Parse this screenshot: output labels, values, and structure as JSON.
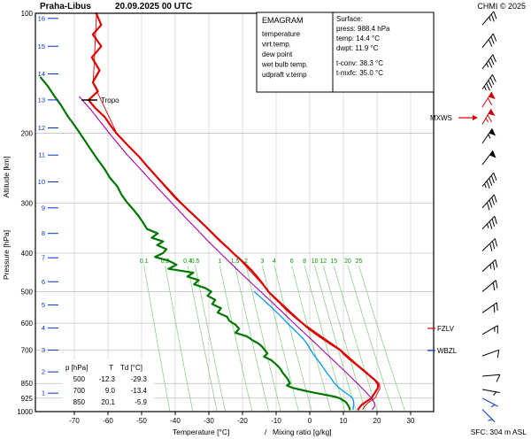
{
  "header": {
    "title": "Praha-Libus",
    "datetime": "20.09.2025 00 UTC",
    "copyright": "CHMI © 2025"
  },
  "legend": {
    "title": "EMAGRAM",
    "items": [
      {
        "label": "temperature",
        "color": "#dd0000"
      },
      {
        "label": "virt.temp.",
        "color": "#dd0000"
      },
      {
        "label": "dew point",
        "color": "#008000"
      },
      {
        "label": "wet bulb temp.",
        "color": "#0099ee"
      },
      {
        "label": "udpraft v.temp",
        "color": "#bb00bb"
      }
    ]
  },
  "surface": {
    "title": "Surface:",
    "lines": [
      {
        "label": "press: 988.4 hPa",
        "color": "#000000"
      },
      {
        "label": "temp: 14.4 °C",
        "color": "#dd0000"
      },
      {
        "label": "dwpt: 11.9 °C",
        "color": "#008000"
      },
      {
        "label": "t-conv: 38.3 °C",
        "color": "#000000"
      },
      {
        "label": "t-mxfc: 35.0 °C",
        "color": "#000000"
      }
    ]
  },
  "axes": {
    "pressure_label": "Pressure [hPa]",
    "altitude_label": "Altitude [km]",
    "temp_label": "Temperature [°C]",
    "separator": "/",
    "mixing_label": "Mixing ratio [g/kg]",
    "sfc_label": "SFC: 304 m ASL"
  },
  "table": {
    "headers": [
      "p [hPa]",
      "T",
      "Td [°C]"
    ],
    "rows": [
      [
        "500",
        "-12.3",
        "-29.3"
      ],
      [
        "700",
        "9.0",
        "-13.4"
      ],
      [
        "850",
        "20.1",
        "-5.9"
      ]
    ]
  },
  "annotations": {
    "tropo": "Tropo",
    "mxws": "MXWS",
    "fzlv": "FZLV",
    "wbzl": "WBZL"
  },
  "chart_data": {
    "type": "line",
    "title": "Praha-Libus emagram sounding 20.09.2025 00 UTC",
    "x_axis": {
      "label": "Temperature [°C]",
      "ticks": [
        -70,
        -60,
        -50,
        -40,
        -30,
        -20,
        -10,
        0,
        10,
        20,
        30
      ],
      "range": [
        -81.6,
        36.8
      ]
    },
    "y_axis": {
      "label": "Pressure [hPa]",
      "scale": "log",
      "ticks": [
        100,
        200,
        300,
        400,
        500,
        600,
        700,
        850,
        925,
        1000
      ],
      "range": [
        100,
        1000
      ]
    },
    "altitude_ticks_km": [
      [
        16,
        103
      ],
      [
        15,
        121
      ],
      [
        14,
        142
      ],
      [
        13,
        165
      ],
      [
        12,
        194
      ],
      [
        11,
        227
      ],
      [
        10,
        265
      ],
      [
        9,
        308
      ],
      [
        8,
        357
      ],
      [
        7,
        411
      ],
      [
        6,
        472
      ],
      [
        5,
        540
      ],
      [
        4,
        617
      ],
      [
        3,
        701
      ],
      [
        2,
        795
      ],
      [
        1,
        899
      ]
    ],
    "mixing_ratio_lines": [
      0.1,
      0.2,
      0.4,
      0.5,
      1,
      1.5,
      2,
      3,
      4,
      6,
      8,
      10,
      12,
      15,
      20,
      25
    ],
    "tropopause_hpa": 165,
    "surface_values": {
      "press_hpa": 988.4,
      "temp_c": 14.4,
      "dwpt_c": 11.9,
      "t_conv_c": 38.3,
      "t_mxfc_c": 35.0,
      "station_elev_m": 304
    },
    "series": [
      {
        "name": "temperature",
        "color": "#dd0000",
        "width": 2.2,
        "points": [
          [
            100,
            -63.5
          ],
          [
            107,
            -62
          ],
          [
            113,
            -64.5
          ],
          [
            121,
            -62
          ],
          [
            129,
            -64.8
          ],
          [
            139,
            -62.5
          ],
          [
            149,
            -64.5
          ],
          [
            157,
            -63
          ],
          [
            165,
            -65.8
          ],
          [
            173,
            -63.8
          ],
          [
            182,
            -61
          ],
          [
            191,
            -59.3
          ],
          [
            200,
            -57.5
          ],
          [
            214,
            -54.2
          ],
          [
            229,
            -50.8
          ],
          [
            244,
            -48
          ],
          [
            259,
            -45.2
          ],
          [
            274,
            -42.6
          ],
          [
            289,
            -40.2
          ],
          [
            300,
            -38.2
          ],
          [
            314,
            -35.8
          ],
          [
            329,
            -33.2
          ],
          [
            344,
            -30.8
          ],
          [
            359,
            -28.6
          ],
          [
            374,
            -26.5
          ],
          [
            389,
            -24.2
          ],
          [
            400,
            -22.8
          ],
          [
            414,
            -20.8
          ],
          [
            429,
            -18.8
          ],
          [
            444,
            -17.1
          ],
          [
            459,
            -15.6
          ],
          [
            479,
            -13.9
          ],
          [
            500,
            -12.3
          ],
          [
            514,
            -10.9
          ],
          [
            529,
            -9.3
          ],
          [
            544,
            -7.9
          ],
          [
            559,
            -6.5
          ],
          [
            579,
            -4.4
          ],
          [
            599,
            -2.3
          ],
          [
            619,
            -0.3
          ],
          [
            639,
            1.9
          ],
          [
            659,
            4.2
          ],
          [
            679,
            6.5
          ],
          [
            700,
            9.0
          ],
          [
            719,
            10.3
          ],
          [
            739,
            11.9
          ],
          [
            759,
            13.6
          ],
          [
            779,
            15.2
          ],
          [
            799,
            16.8
          ],
          [
            819,
            18.3
          ],
          [
            834,
            19.4
          ],
          [
            850,
            20.1
          ],
          [
            861,
            20.4
          ],
          [
            874,
            20.2
          ],
          [
            887,
            19.7
          ],
          [
            899,
            19.3
          ],
          [
            912,
            18.8
          ],
          [
            925,
            18.4
          ],
          [
            937,
            17.4
          ],
          [
            949,
            16.4
          ],
          [
            961,
            15.5
          ],
          [
            974,
            14.9
          ],
          [
            988,
            14.4
          ]
        ]
      },
      {
        "name": "virt_temp",
        "color": "#dd0000",
        "width": 0.9,
        "points": [
          [
            100,
            -63.4
          ],
          [
            150,
            -64.4
          ],
          [
            200,
            -57.4
          ],
          [
            300,
            -38
          ],
          [
            400,
            -22.6
          ],
          [
            500,
            -12.1
          ],
          [
            600,
            -2
          ],
          [
            700,
            9.3
          ],
          [
            750,
            13.3
          ],
          [
            800,
            17.2
          ],
          [
            850,
            20.7
          ],
          [
            875,
            20.9
          ],
          [
            900,
            20.1
          ],
          [
            925,
            19.4
          ],
          [
            950,
            17.4
          ],
          [
            974,
            16.1
          ],
          [
            988,
            15.8
          ]
        ]
      },
      {
        "name": "dew_point",
        "color": "#007700",
        "width": 2.2,
        "points": [
          [
            145,
            -80
          ],
          [
            152,
            -78
          ],
          [
            161,
            -76
          ],
          [
            170,
            -74
          ],
          [
            181,
            -72
          ],
          [
            192,
            -69.8
          ],
          [
            205,
            -67.5
          ],
          [
            218,
            -65.4
          ],
          [
            232,
            -63.2
          ],
          [
            246,
            -61
          ],
          [
            259,
            -59.4
          ],
          [
            272,
            -57.2
          ],
          [
            285,
            -56
          ],
          [
            298,
            -54.4
          ],
          [
            310,
            -52.6
          ],
          [
            322,
            -51
          ],
          [
            335,
            -49.6
          ],
          [
            348,
            -48.4
          ],
          [
            357,
            -45.2
          ],
          [
            366,
            -47
          ],
          [
            374,
            -43.6
          ],
          [
            382,
            -45.4
          ],
          [
            391,
            -42.6
          ],
          [
            400,
            -43.6
          ],
          [
            409,
            -46
          ],
          [
            418,
            -42
          ],
          [
            428,
            -39.6
          ],
          [
            438,
            -42
          ],
          [
            448,
            -34.6
          ],
          [
            458,
            -36.4
          ],
          [
            468,
            -33
          ],
          [
            479,
            -34.4
          ],
          [
            490,
            -31
          ],
          [
            500,
            -29.3
          ],
          [
            512,
            -30.4
          ],
          [
            524,
            -28.1
          ],
          [
            537,
            -29
          ],
          [
            550,
            -26.4
          ],
          [
            564,
            -27.4
          ],
          [
            578,
            -24.6
          ],
          [
            592,
            -23.9
          ],
          [
            606,
            -22
          ],
          [
            620,
            -21
          ],
          [
            634,
            -22.1
          ],
          [
            648,
            -18.6
          ],
          [
            662,
            -17
          ],
          [
            676,
            -15.1
          ],
          [
            688,
            -14.1
          ],
          [
            700,
            -13.4
          ],
          [
            714,
            -12.6
          ],
          [
            728,
            -13.6
          ],
          [
            742,
            -11.5
          ],
          [
            756,
            -10.4
          ],
          [
            770,
            -9.4
          ],
          [
            784,
            -8.6
          ],
          [
            800,
            -8
          ],
          [
            815,
            -7.2
          ],
          [
            830,
            -6.5
          ],
          [
            850,
            -5.9
          ],
          [
            860,
            -6.8
          ],
          [
            870,
            -5.4
          ],
          [
            880,
            -3.1
          ],
          [
            890,
            -0.6
          ],
          [
            900,
            2.4
          ],
          [
            910,
            5.4
          ],
          [
            918,
            7.6
          ],
          [
            925,
            8.8
          ],
          [
            935,
            9.8
          ],
          [
            945,
            10.6
          ],
          [
            955,
            11.1
          ],
          [
            965,
            11.4
          ],
          [
            975,
            11.7
          ],
          [
            988,
            11.9
          ]
        ]
      },
      {
        "name": "wet_bulb",
        "color": "#0099ee",
        "width": 1.3,
        "points": [
          [
            500,
            -16.5
          ],
          [
            520,
            -14.2
          ],
          [
            540,
            -12.1
          ],
          [
            560,
            -10.1
          ],
          [
            580,
            -8.3
          ],
          [
            600,
            -6.6
          ],
          [
            620,
            -4.9
          ],
          [
            640,
            -3.2
          ],
          [
            660,
            -1.7
          ],
          [
            680,
            -0.6
          ],
          [
            700,
            0.2
          ],
          [
            720,
            1.2
          ],
          [
            740,
            2.3
          ],
          [
            760,
            3.3
          ],
          [
            780,
            4.2
          ],
          [
            800,
            5.1
          ],
          [
            820,
            6.1
          ],
          [
            850,
            7.4
          ],
          [
            865,
            8.3
          ],
          [
            880,
            9.3
          ],
          [
            900,
            10.9
          ],
          [
            915,
            12.1
          ],
          [
            925,
            12.7
          ],
          [
            940,
            13.0
          ],
          [
            955,
            13.1
          ],
          [
            970,
            13.0
          ],
          [
            988,
            12.9
          ]
        ]
      },
      {
        "name": "updraft_virt_temp",
        "color": "#aa00aa",
        "width": 1.1,
        "points": [
          [
            162,
            -68.5
          ],
          [
            175,
            -65
          ],
          [
            200,
            -59.6
          ],
          [
            225,
            -54.6
          ],
          [
            250,
            -49.6
          ],
          [
            275,
            -45.1
          ],
          [
            300,
            -40.9
          ],
          [
            325,
            -37.1
          ],
          [
            350,
            -33.4
          ],
          [
            375,
            -30
          ],
          [
            400,
            -26.6
          ],
          [
            425,
            -23.4
          ],
          [
            450,
            -20.4
          ],
          [
            475,
            -17.4
          ],
          [
            500,
            -14.6
          ],
          [
            530,
            -11.4
          ],
          [
            560,
            -8.4
          ],
          [
            590,
            -5.6
          ],
          [
            620,
            -2.9
          ],
          [
            650,
            -0.3
          ],
          [
            680,
            2.2
          ],
          [
            710,
            4.5
          ],
          [
            740,
            6.8
          ],
          [
            770,
            8.9
          ],
          [
            800,
            11
          ],
          [
            830,
            12.9
          ],
          [
            860,
            14.8
          ],
          [
            890,
            16.5
          ],
          [
            920,
            18.1
          ],
          [
            950,
            19.2
          ],
          [
            970,
            19.3
          ],
          [
            988,
            18.6
          ]
        ]
      }
    ],
    "winds": [
      {
        "p": 107,
        "kt": 25,
        "dir": 40,
        "color": "#000000"
      },
      {
        "p": 122,
        "kt": 30,
        "dir": 38,
        "color": "#000000"
      },
      {
        "p": 138,
        "kt": 35,
        "dir": 36,
        "color": "#000000"
      },
      {
        "p": 155,
        "kt": 45,
        "dir": 35,
        "color": "#000000"
      },
      {
        "p": 172,
        "kt": 60,
        "dir": 32,
        "color": "#cc0000"
      },
      {
        "p": 190,
        "kt": 65,
        "dir": 30,
        "color": "#cc0000"
      },
      {
        "p": 212,
        "kt": 55,
        "dir": 34,
        "color": "#000000"
      },
      {
        "p": 240,
        "kt": 50,
        "dir": 37,
        "color": "#000000"
      },
      {
        "p": 272,
        "kt": 45,
        "dir": 40,
        "color": "#000000"
      },
      {
        "p": 308,
        "kt": 40,
        "dir": 42,
        "color": "#000000"
      },
      {
        "p": 348,
        "kt": 35,
        "dir": 44,
        "color": "#000000"
      },
      {
        "p": 395,
        "kt": 30,
        "dir": 46,
        "color": "#000000"
      },
      {
        "p": 445,
        "kt": 25,
        "dir": 48,
        "color": "#000000"
      },
      {
        "p": 500,
        "kt": 20,
        "dir": 50,
        "color": "#000000"
      },
      {
        "p": 565,
        "kt": 18,
        "dir": 55,
        "color": "#000000"
      },
      {
        "p": 640,
        "kt": 15,
        "dir": 60,
        "color": "#000000"
      },
      {
        "p": 725,
        "kt": 10,
        "dir": 70,
        "color": "#000000"
      },
      {
        "p": 815,
        "kt": 8,
        "dir": 85,
        "color": "#000000"
      },
      {
        "p": 880,
        "kt": 7,
        "dir": 100,
        "color": "#000000"
      },
      {
        "p": 925,
        "kt": 6,
        "dir": 118,
        "color": "#0033cc"
      },
      {
        "p": 988,
        "kt": 5,
        "dir": 135,
        "color": "#0033cc"
      }
    ]
  }
}
